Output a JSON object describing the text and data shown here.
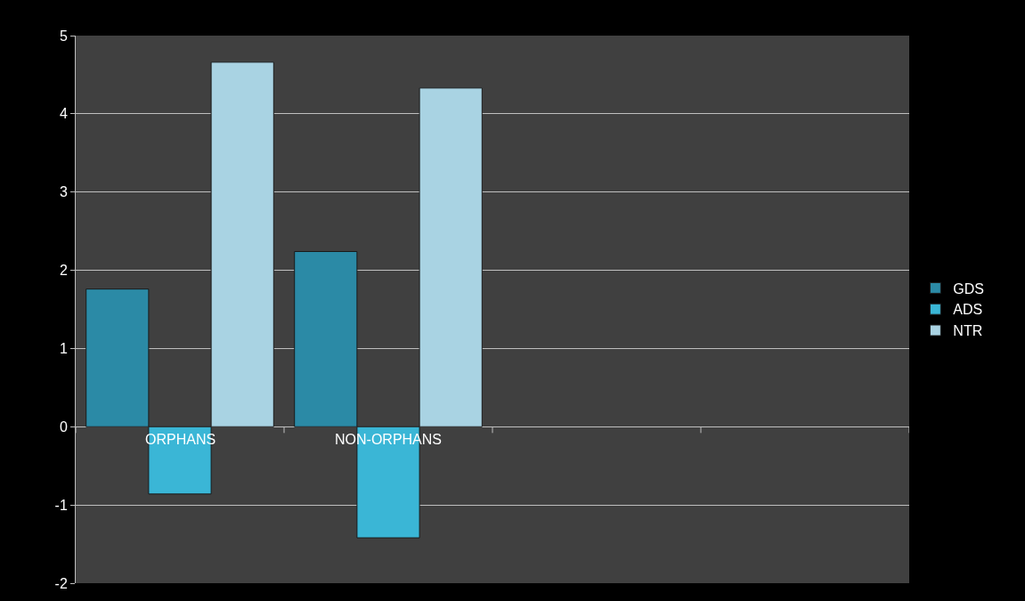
{
  "chart_data": {
    "type": "bar",
    "categories": [
      "ORPHANS",
      "NON-ORPHANS",
      null,
      null
    ],
    "series": [
      {
        "name": "GDS",
        "color": "#2b8aa6",
        "values": [
          1.76,
          2.24,
          null,
          null
        ]
      },
      {
        "name": "ADS",
        "color": "#3ab6d6",
        "values": [
          -0.86,
          -1.42,
          null,
          null
        ]
      },
      {
        "name": "NTR",
        "color": "#a9d3e3",
        "values": [
          4.66,
          4.33,
          null,
          null
        ]
      }
    ],
    "ylim": [
      -2,
      5
    ],
    "yticks": [
      -2,
      -1,
      0,
      1,
      2,
      3,
      4,
      5
    ],
    "grid": "y",
    "legend": "right"
  }
}
